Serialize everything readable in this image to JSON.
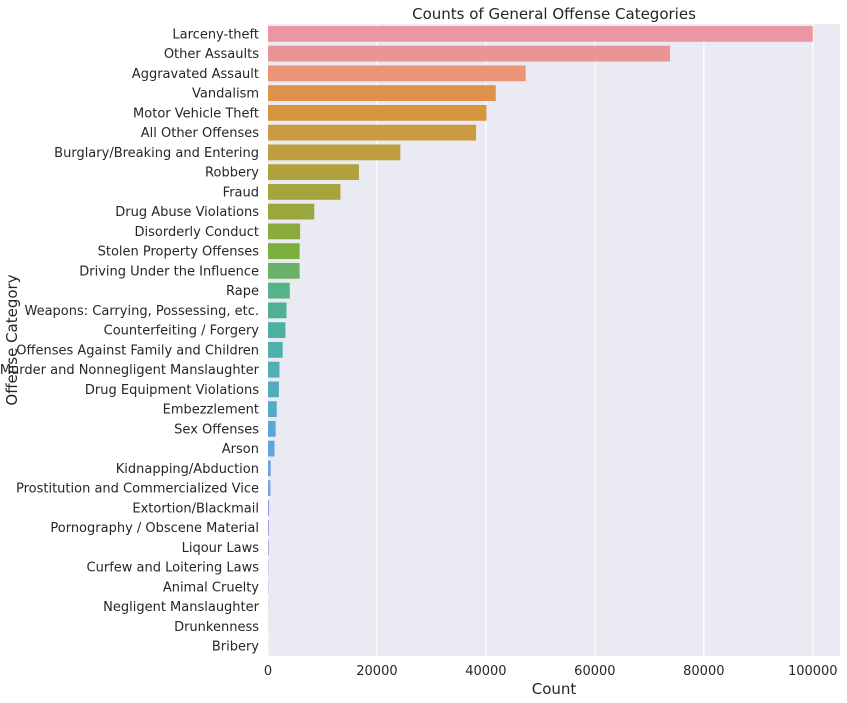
{
  "chart_data": {
    "type": "bar",
    "orientation": "horizontal",
    "title": "Counts of General Offense Categories",
    "xlabel": "Count",
    "ylabel": "Offense Category",
    "xlim": [
      0,
      105000
    ],
    "xticks": [
      0,
      20000,
      40000,
      60000,
      80000,
      100000
    ],
    "xtick_labels": [
      "0",
      "20000",
      "40000",
      "60000",
      "80000",
      "100000"
    ],
    "grid": true,
    "legend": "none",
    "categories": [
      "Larceny-theft",
      "Other Assaults",
      "Aggravated Assault",
      "Vandalism",
      "Motor Vehicle Theft",
      "All Other Offenses",
      "Burglary/Breaking and Entering",
      "Robbery",
      "Fraud",
      "Drug Abuse Violations",
      "Disorderly Conduct",
      "Stolen Property Offenses",
      "Driving Under the Influence",
      "Rape",
      "Weapons: Carrying, Possessing, etc.",
      "Counterfeiting / Forgery",
      "Offenses Against Family and Children",
      "Murder and Nonnegligent Manslaughter",
      "Drug Equipment Violations",
      "Embezzlement",
      "Sex Offenses",
      "Arson",
      "Kidnapping/Abduction",
      "Prostitution and Commercialized Vice",
      "Extortion/Blackmail",
      "Pornography / Obscene Material",
      "Liqour Laws",
      "Curfew and Loitering Laws",
      "Animal Cruelty",
      "Negligent Manslaughter",
      "Drunkenness",
      "Bribery"
    ],
    "values": [
      100000,
      73800,
      47300,
      41800,
      40100,
      38200,
      24300,
      16700,
      13300,
      8500,
      5900,
      5800,
      5800,
      4000,
      3400,
      3200,
      2700,
      2100,
      2000,
      1600,
      1400,
      1200,
      500,
      450,
      200,
      180,
      150,
      80,
      60,
      40,
      30,
      20
    ],
    "colors": [
      "#ea96a3",
      "#ea9595",
      "#e99576",
      "#df9149",
      "#d6963f",
      "#cc9a3f",
      "#bd9f3e",
      "#b0a23d",
      "#a5a43d",
      "#9aa73d",
      "#8cab3d",
      "#7aae3d",
      "#6bb169",
      "#55b486",
      "#4db294",
      "#4cb1a1",
      "#4eafab",
      "#50aeb5",
      "#53acbd",
      "#55aac8",
      "#58a8d3",
      "#5ea6db",
      "#6ea2e0",
      "#81a0e2",
      "#939de5",
      "#a699e5",
      "#b995e4",
      "#c992e2",
      "#d98ddc",
      "#e38ad1",
      "#e68cbd",
      "#e892ac"
    ]
  }
}
